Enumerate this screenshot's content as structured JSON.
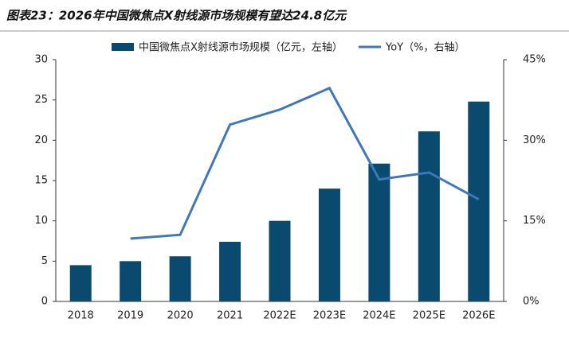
{
  "chart_data": {
    "type": "bar_line",
    "title": "图表23：2026年中国微焦点X射线源市场规模有望达24.8亿元",
    "categories": [
      "2018",
      "2019",
      "2020",
      "2021",
      "2022E",
      "2023E",
      "2024E",
      "2025E",
      "2026E"
    ],
    "series": [
      {
        "name": "中国微焦点X射线源市场规模（亿元，左轴）",
        "color": "#0a4a6e",
        "type": "bar",
        "values": [
          4.5,
          5.0,
          5.6,
          7.4,
          10.0,
          14.0,
          17.1,
          21.1,
          24.8
        ]
      },
      {
        "name": "YoY（%，右轴）",
        "color": "#3f77b9",
        "type": "line",
        "axis": "y2",
        "values": [
          null,
          11.7,
          12.4,
          32.9,
          35.7,
          39.7,
          22.7,
          24.0,
          19.0
        ]
      }
    ],
    "ylim": [
      0,
      30
    ],
    "yticks": [
      0,
      5,
      10,
      15,
      20,
      25,
      30
    ],
    "y2lim": [
      0,
      45
    ],
    "y2ticks": [
      {
        "value": 0,
        "label": "0%"
      },
      {
        "value": 15,
        "label": "15%"
      },
      {
        "value": 30,
        "label": "30%"
      },
      {
        "value": 45,
        "label": "45%"
      }
    ]
  }
}
